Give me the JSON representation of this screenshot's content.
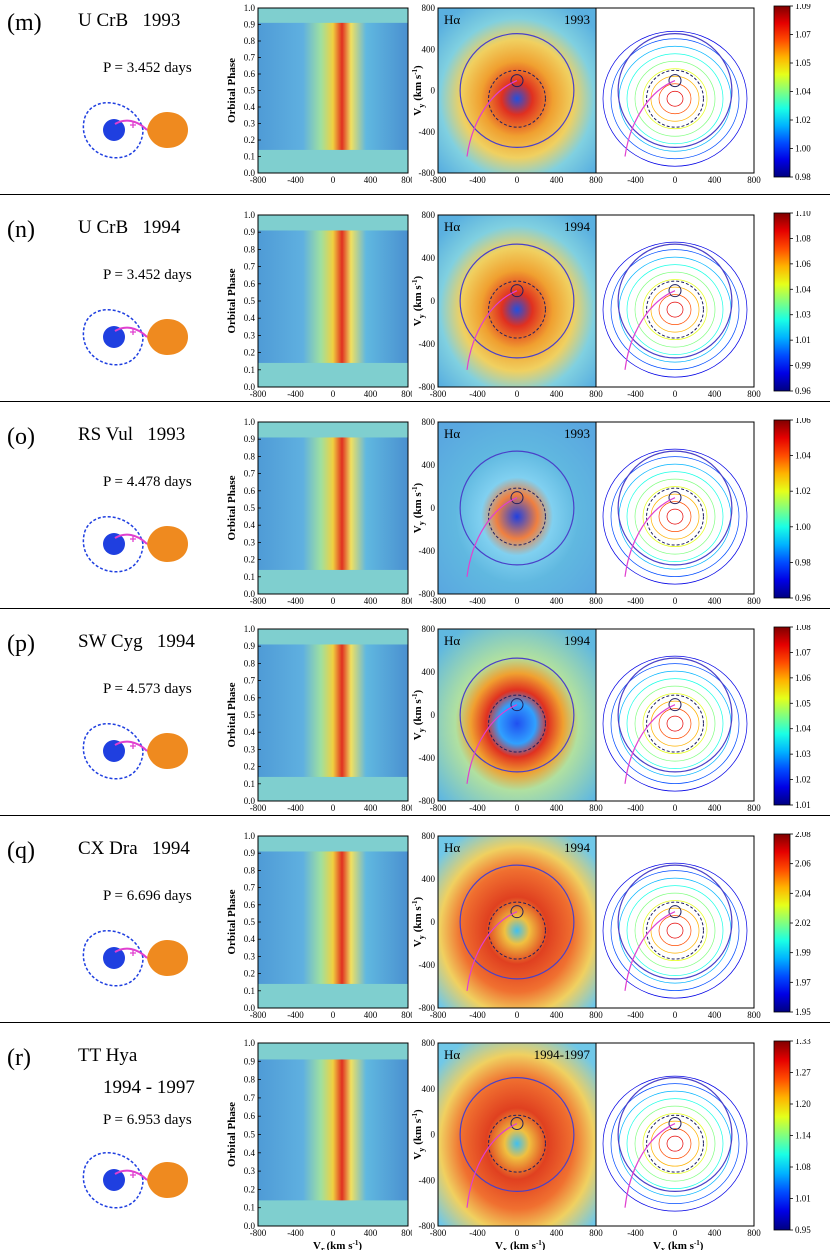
{
  "labels": {
    "phase_axis": "Orbital Phase",
    "vy": "V",
    "vy_sub": "y",
    "unit": "(km s",
    "unit_sup": "-1",
    "unit_close": ")",
    "vr": "V",
    "vr_sub": "r",
    "vx": "V",
    "vx_sub": "x",
    "line": "Hα"
  },
  "phase_ticks": [
    "0.0",
    "0.1",
    "0.2",
    "0.3",
    "0.4",
    "0.5",
    "0.6",
    "0.7",
    "0.8",
    "0.9",
    "1.0"
  ],
  "vel_ticks": [
    "-800",
    "-400",
    "0",
    "400",
    "800"
  ],
  "vel_ticks_short": [
    "-400",
    "0",
    "400",
    "800"
  ],
  "vy_ticks": [
    "800",
    "400",
    "0",
    "-400",
    "-800"
  ],
  "panels": [
    {
      "tag": "(m)",
      "name": "U CrB",
      "year": "1993",
      "title_year": "1993",
      "period": "P = 3.452 days",
      "cbar": [
        "1.09",
        "1.07",
        "1.05",
        "1.04",
        "1.02",
        "1.00",
        "0.98"
      ],
      "cmap": "warm",
      "pcx": 0.6
    },
    {
      "tag": "(n)",
      "name": "U CrB",
      "year": "1994",
      "title_year": "1994",
      "period": "P = 3.452 days",
      "cbar": [
        "1.10",
        "1.08",
        "1.06",
        "1.04",
        "1.03",
        "1.01",
        "0.99",
        "0.96"
      ],
      "cmap": "mid",
      "pcx": 0.5
    },
    {
      "tag": "(o)",
      "name": "RS Vul",
      "year": "1993",
      "title_year": "1993",
      "period": "P = 4.478 days",
      "cbar": [
        "1.06",
        "1.04",
        "1.02",
        "1.00",
        "0.98",
        "0.96"
      ],
      "cmap": "cool",
      "pcx": 0.5
    },
    {
      "tag": "(p)",
      "name": "SW Cyg",
      "year": "1994",
      "title_year": "1994",
      "period": "P = 4.573 days",
      "cbar": [
        "1.08",
        "1.07",
        "1.06",
        "1.05",
        "1.04",
        "1.03",
        "1.02",
        "1.01"
      ],
      "cmap": "ring",
      "pcx": 0.5
    },
    {
      "tag": "(q)",
      "name": "CX Dra",
      "year": "1994",
      "title_year": "1994",
      "period": "P = 6.696 days",
      "cbar": [
        "2.08",
        "2.06",
        "2.04",
        "2.02",
        "1.99",
        "1.97",
        "1.95"
      ],
      "cmap": "hot",
      "pcx": 0.5
    },
    {
      "tag": "(r)",
      "name": "TT Hya",
      "year": "1994 - 1997",
      "title_year": "1994-1997",
      "period": "P = 6.953 days",
      "cbar": [
        "1.33",
        "1.27",
        "1.20",
        "1.14",
        "1.08",
        "1.01",
        "0.95"
      ],
      "cmap": "hot",
      "pcx": 0.5
    }
  ],
  "colors": {
    "primary": "#1f3fe0",
    "donor": "#ef8a1f",
    "stream": "#e040d0",
    "rim": "#4a40c8",
    "teal": "#7fcfcf"
  }
}
